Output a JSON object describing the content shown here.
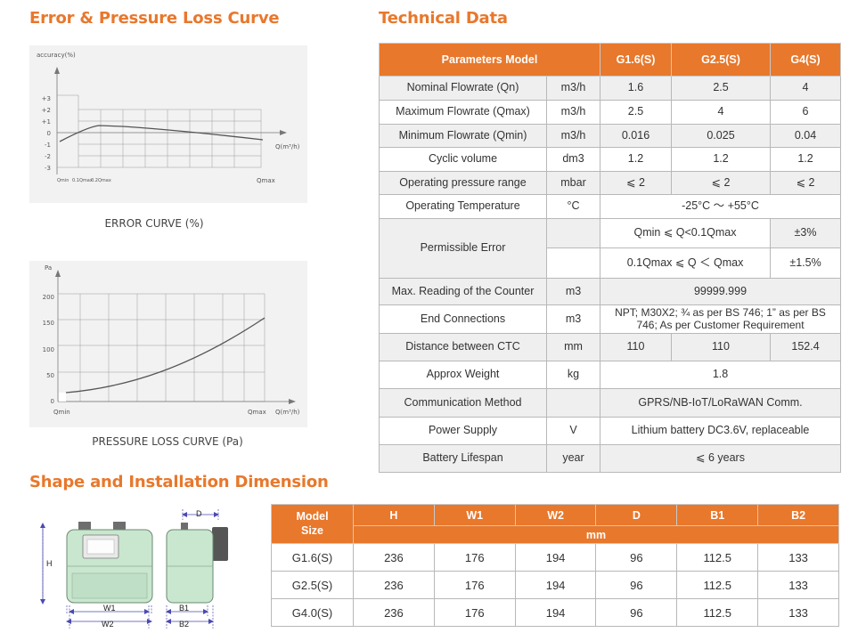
{
  "titles": {
    "error_curve": "Error & Pressure Loss Curve",
    "technical": "Technical Data",
    "shape": "Shape and Installation Dimension"
  },
  "error_chart": {
    "y_label": "accuracy(%)",
    "y_ticks": [
      "+3",
      "+2",
      "+1",
      "0",
      "-1",
      "-2",
      "-3"
    ],
    "x_axis_label": "Q(m³/h)",
    "x_ticks": [
      "Qmin",
      "0.1Qmax",
      "0.2Qmax",
      "Qmax"
    ],
    "caption": "ERROR CURVE (%)"
  },
  "pressure_chart": {
    "y_label": "Pa",
    "y_ticks": [
      "200",
      "150",
      "100",
      "50",
      "0"
    ],
    "x_axis_label": "Q(m³/h)",
    "x_ticks": [
      "Qmin",
      "Qmax"
    ],
    "caption": "PRESSURE LOSS CURVE (Pa)"
  },
  "tech_table": {
    "headers": [
      "Parameters Model",
      "G1.6(S)",
      "G2.5(S)",
      "G4(S)"
    ],
    "rows": [
      {
        "param": "Nominal Flowrate (Qn)",
        "unit": "m3/h",
        "v1": "1.6",
        "v2": "2.5",
        "v3": "4"
      },
      {
        "param": "Maximum Flowrate (Qmax)",
        "unit": "m3/h",
        "v1": "2.5",
        "v2": "4",
        "v3": "6"
      },
      {
        "param": "Minimum Flowrate (Qmin)",
        "unit": "m3/h",
        "v1": "0.016",
        "v2": "0.025",
        "v3": "0.04"
      },
      {
        "param": "Cyclic volume",
        "unit": "dm3",
        "v1": "1.2",
        "v2": "1.2",
        "v3": "1.2"
      },
      {
        "param": "Operating pressure range",
        "unit": "mbar",
        "v1": "⩽ 2",
        "v2": "⩽ 2",
        "v3": "⩽ 2"
      },
      {
        "param": "Operating Temperature",
        "unit": "°C",
        "span": "-25°C ～ +55°C"
      }
    ],
    "permissible": {
      "param": "Permissible Error",
      "r1_range": "Qmin ⩽ Q<0.1Qmax",
      "r1_val": "±3%",
      "r2_range": "0.1Qmax ⩽ Q ＜ Qmax",
      "r2_val": "±1.5%"
    },
    "rows2": [
      {
        "param": "Max. Reading of the Counter",
        "unit": "m3",
        "span": "99999.999"
      },
      {
        "param": "End Connections",
        "unit": "m3",
        "span": "NPT; M30X2; ¾ as per BS 746; 1”   as per BS 746; As per Customer Requirement"
      }
    ],
    "ctc": {
      "param": "Distance between CTC",
      "unit": "mm",
      "v1": "110",
      "v2": "110",
      "v3": "152.4"
    },
    "rows3": [
      {
        "param": "Approx Weight",
        "unit": "kg",
        "span": "1.8"
      },
      {
        "param": "Communication Method",
        "unit": "",
        "span": "GPRS/NB-IoT/LoRaWAN Comm."
      },
      {
        "param": "Power Supply",
        "unit": "V",
        "span": "Lithium battery DC3.6V, replaceable"
      },
      {
        "param": "Battery Lifespan",
        "unit": "year",
        "span": "⩽ 6 years"
      }
    ]
  },
  "dim_table": {
    "model_label": "Model Size",
    "headers": [
      "H",
      "W1",
      "W2",
      "D",
      "B1",
      "B2"
    ],
    "unit": "mm",
    "rows": [
      {
        "model": "G1.6(S)",
        "vals": [
          "236",
          "176",
          "194",
          "96",
          "112.5",
          "133"
        ]
      },
      {
        "model": "G2.5(S)",
        "vals": [
          "236",
          "176",
          "194",
          "96",
          "112.5",
          "133"
        ]
      },
      {
        "model": "G4.0(S)",
        "vals": [
          "236",
          "176",
          "194",
          "96",
          "112.5",
          "133"
        ]
      }
    ]
  },
  "diagram_labels": {
    "h": "H",
    "w1": "W1",
    "w2": "W2",
    "d": "D",
    "b1": "B1",
    "b2": "B2"
  }
}
